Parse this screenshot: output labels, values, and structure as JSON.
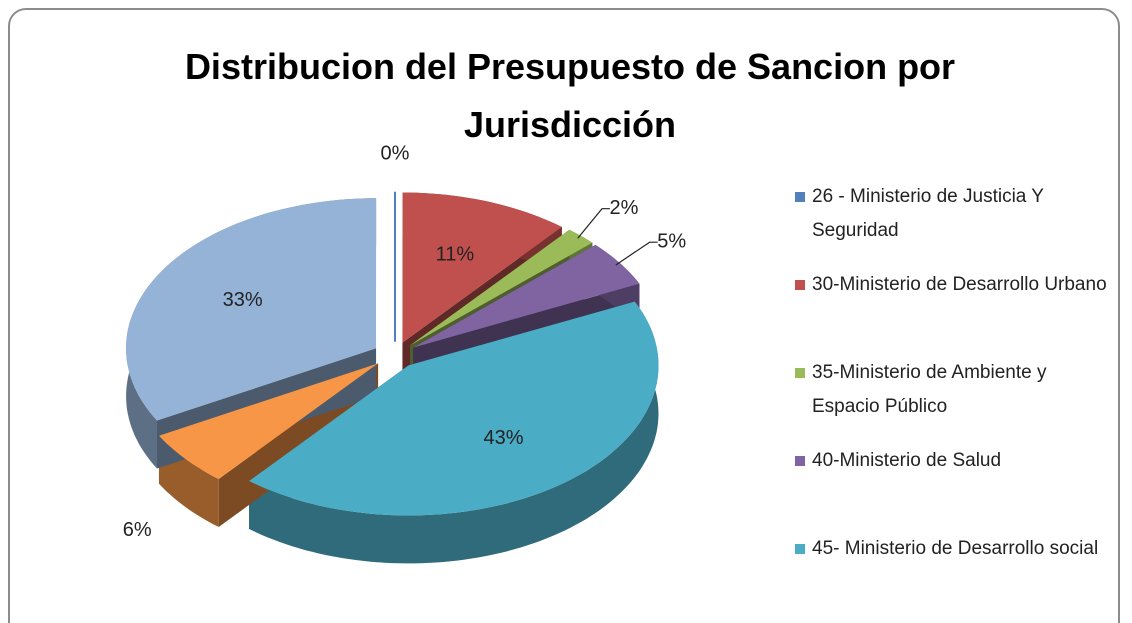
{
  "chart_data": {
    "type": "pie3d",
    "title": "Distribucion del Presupuesto de Sancion por Jurisdicción",
    "categories": [
      "26 - Ministerio de Justicia Y Seguridad",
      "30-Ministerio de Desarrollo Urbano",
      "35-Ministerio de Ambiente y Espacio Público",
      "40-Ministerio de Salud",
      "45- Ministerio de Desarrollo social",
      null,
      null
    ],
    "values": [
      0,
      11,
      2,
      5,
      43,
      6,
      33
    ],
    "value_labels": [
      "0%",
      "11%",
      "2%",
      "5%",
      "43%",
      "6%",
      "33%"
    ],
    "colors": [
      "#4f81bd",
      "#c0504d",
      "#9bbb59",
      "#8064a2",
      "#4bacc6",
      "#f79646",
      "#95b3d7"
    ],
    "legend": "right"
  }
}
